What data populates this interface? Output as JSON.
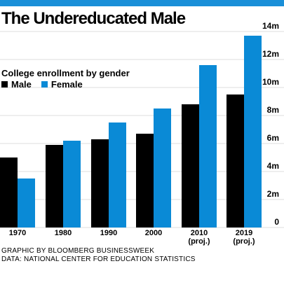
{
  "title": "The Undereducated Male",
  "credits": {
    "line1": "GRAPHIC BY BLOOMBERG BUSINESSWEEK",
    "line2": "DATA: NATIONAL CENTER FOR EDUCATION STATISTICS"
  },
  "colors": {
    "male": "#000000",
    "female": "#0a8ad6",
    "topbar": "#1a8fd8",
    "grid": "#bbbbbb"
  },
  "chart_data": {
    "type": "bar",
    "subtitle": "College enrollment by gender",
    "categories": [
      [
        "1970"
      ],
      [
        "1980"
      ],
      [
        "1990"
      ],
      [
        "2000"
      ],
      [
        "2010",
        "(proj.)"
      ],
      [
        "2019",
        "(proj.)"
      ]
    ],
    "series": [
      {
        "name": "Male",
        "values": [
          5.0,
          5.9,
          6.3,
          6.7,
          8.8,
          9.5
        ]
      },
      {
        "name": "Female",
        "values": [
          3.5,
          6.2,
          7.5,
          8.5,
          11.6,
          13.7
        ]
      }
    ],
    "yticks": [
      {
        "value": 0,
        "label": "0"
      },
      {
        "value": 2,
        "label": "2m"
      },
      {
        "value": 4,
        "label": "4m"
      },
      {
        "value": 6,
        "label": "6m"
      },
      {
        "value": 8,
        "label": "8m"
      },
      {
        "value": 10,
        "label": "10m"
      },
      {
        "value": 12,
        "label": "12m"
      },
      {
        "value": 14,
        "label": "14m"
      }
    ],
    "ylim": [
      0,
      14
    ],
    "grid": true,
    "legend_position": "top-left"
  }
}
